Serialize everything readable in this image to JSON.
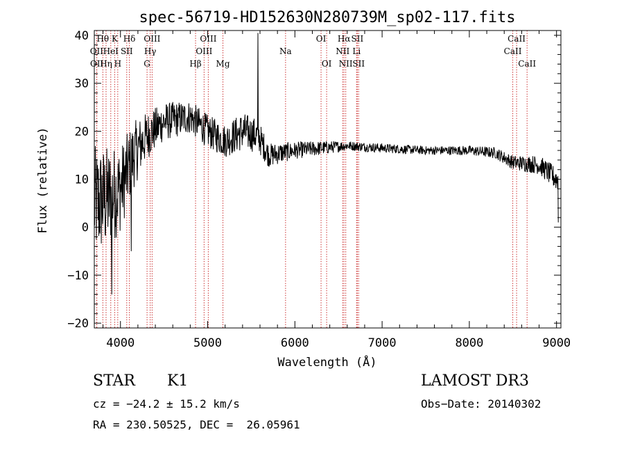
{
  "chart_data": {
    "type": "line",
    "title": "spec-56719-HD152630N280739M_sp02-117.fits",
    "xlabel": "Wavelength (Å)",
    "ylabel": "Flux (relative)",
    "xlim": [
      3700,
      9050
    ],
    "ylim": [
      -21,
      41
    ],
    "xticks": [
      4000,
      5000,
      6000,
      7000,
      8000,
      9000
    ],
    "yticks": [
      -20,
      -10,
      0,
      10,
      20,
      30,
      40
    ],
    "line_color": "#000000",
    "marker_color": "#cc3333",
    "spectrum_anchors": [
      {
        "x": 3700,
        "y": 5,
        "noise": 12
      },
      {
        "x": 3850,
        "y": 6,
        "noise": 11
      },
      {
        "x": 4000,
        "y": 8,
        "noise": 9
      },
      {
        "x": 4150,
        "y": 15,
        "noise": 7
      },
      {
        "x": 4300,
        "y": 19,
        "noise": 5
      },
      {
        "x": 4500,
        "y": 22,
        "noise": 4
      },
      {
        "x": 4800,
        "y": 23,
        "noise": 3.5
      },
      {
        "x": 5000,
        "y": 20,
        "noise": 3.5
      },
      {
        "x": 5200,
        "y": 18,
        "noise": 3.5
      },
      {
        "x": 5400,
        "y": 20,
        "noise": 4
      },
      {
        "x": 5580,
        "y": 19,
        "noise": 3.5
      },
      {
        "x": 5700,
        "y": 15,
        "noise": 2.5
      },
      {
        "x": 6000,
        "y": 16,
        "noise": 1.8
      },
      {
        "x": 6300,
        "y": 16.5,
        "noise": 1.5
      },
      {
        "x": 6600,
        "y": 17,
        "noise": 1
      },
      {
        "x": 7000,
        "y": 16.5,
        "noise": 1
      },
      {
        "x": 7500,
        "y": 16,
        "noise": 0.9
      },
      {
        "x": 8000,
        "y": 16,
        "noise": 1
      },
      {
        "x": 8300,
        "y": 15.5,
        "noise": 1.2
      },
      {
        "x": 8500,
        "y": 13.5,
        "noise": 1.5
      },
      {
        "x": 8800,
        "y": 13,
        "noise": 2
      },
      {
        "x": 9000,
        "y": 10,
        "noise": 2.5
      }
    ],
    "features": [
      {
        "x": 5577,
        "y": 40.5,
        "type": "spike"
      },
      {
        "x": 4125,
        "y": -5,
        "type": "dip"
      },
      {
        "x": 3900,
        "y": -14,
        "type": "dip"
      },
      {
        "x": 9020,
        "y": 1,
        "type": "dip"
      }
    ],
    "lines": [
      {
        "label": "Hθ",
        "x": 3798,
        "row": 0
      },
      {
        "label": "OII",
        "x": 3727,
        "row": 1
      },
      {
        "label": "OII",
        "x": 3729,
        "row": 2
      },
      {
        "label": "Hη",
        "x": 3835,
        "row": 2
      },
      {
        "label": "HeI",
        "x": 3889,
        "row": 1
      },
      {
        "label": "K",
        "x": 3934,
        "row": 0
      },
      {
        "label": "H",
        "x": 3969,
        "row": 2
      },
      {
        "label": "SII",
        "x": 4072,
        "row": 1
      },
      {
        "label": "Hδ",
        "x": 4102,
        "row": 0
      },
      {
        "label": "G",
        "x": 4305,
        "row": 2
      },
      {
        "label": "OIII",
        "x": 4363,
        "row": 0
      },
      {
        "label": "Hγ",
        "x": 4341,
        "row": 1
      },
      {
        "label": "Hβ",
        "x": 4861,
        "row": 2
      },
      {
        "label": "OIII",
        "x": 4959,
        "row": 1
      },
      {
        "label": "OIII",
        "x": 5007,
        "row": 0
      },
      {
        "label": "Mg",
        "x": 5175,
        "row": 2
      },
      {
        "label": "Na",
        "x": 5893,
        "row": 1
      },
      {
        "label": "OI",
        "x": 6300,
        "row": 0
      },
      {
        "label": "OI",
        "x": 6364,
        "row": 2
      },
      {
        "label": "NII",
        "x": 6548,
        "row": 1
      },
      {
        "label": "Hα",
        "x": 6563,
        "row": 0
      },
      {
        "label": "NII",
        "x": 6583,
        "row": 2
      },
      {
        "label": "Li",
        "x": 6707,
        "row": 1
      },
      {
        "label": "SII",
        "x": 6716,
        "row": 0
      },
      {
        "label": "SII",
        "x": 6731,
        "row": 2
      },
      {
        "label": "CaII",
        "x": 8498,
        "row": 1
      },
      {
        "label": "CaII",
        "x": 8542,
        "row": 0
      },
      {
        "label": "CaII",
        "x": 8662,
        "row": 2
      }
    ]
  },
  "info": {
    "object_class": "STAR",
    "subclass": "K1",
    "cz": "cz = −24.2 ± 15.2 km/s",
    "radec": "RA = 230.50525, DEC =  26.05961",
    "survey": "LAMOST DR3",
    "obs_date": "Obs−Date: 20140302"
  }
}
